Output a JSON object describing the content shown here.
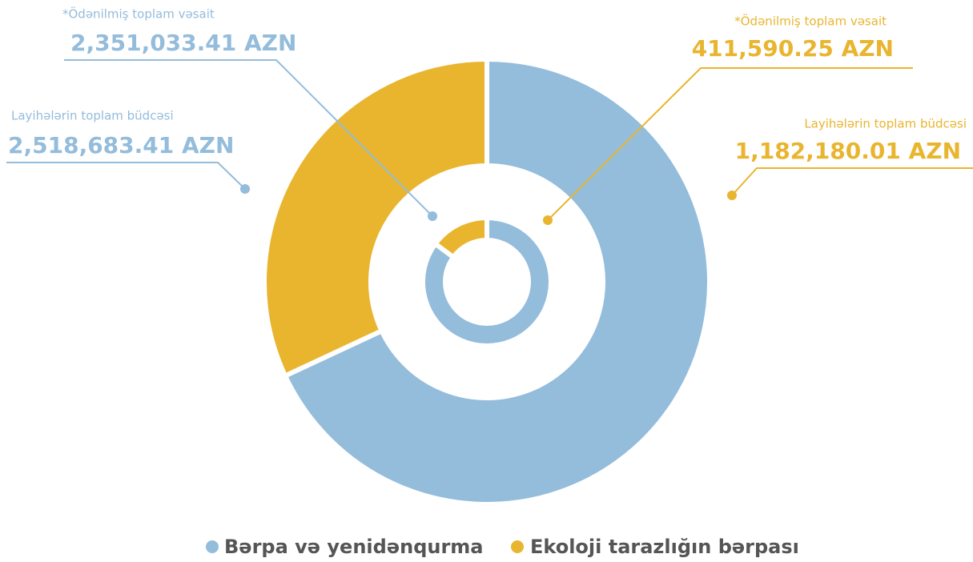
{
  "chart_data": {
    "type": "nested-donut",
    "ring_labels": [
      "Layihələrin toplam büdcəsi",
      "*Ödənilmiş toplam vəsait"
    ],
    "series": [
      {
        "name": "Bərpa və yenidənqurma",
        "color": "#94bcdb",
        "values": [
          2518683.41,
          2351033.41
        ],
        "value_labels": [
          "2,518,683.41 AZN",
          "2,351,033.41 AZN"
        ]
      },
      {
        "name": "Ekoloji tarazlığın bərpası",
        "color": "#e9b52f",
        "values": [
          1182180.01,
          411590.25
        ],
        "value_labels": [
          "1,182,180.01 AZN",
          "411,590.25 AZN"
        ]
      }
    ],
    "legend": "bottom"
  }
}
